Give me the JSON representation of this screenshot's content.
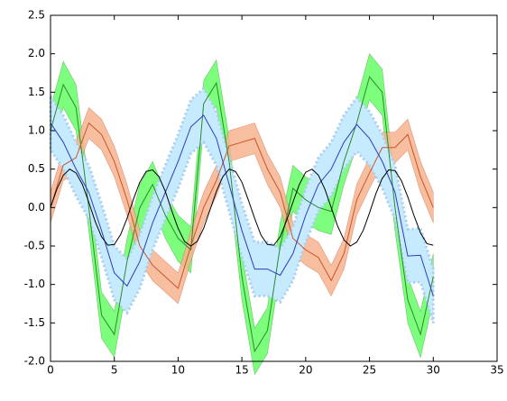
{
  "chart_data": {
    "type": "line",
    "x": [
      0,
      1,
      2,
      3,
      4,
      5,
      6,
      7,
      8,
      9,
      10,
      11,
      12,
      13,
      14,
      15,
      16,
      17,
      18,
      19,
      20,
      21,
      22,
      23,
      24,
      25,
      26,
      27,
      28,
      29,
      30
    ],
    "series": [
      {
        "color": "#2a8a2a",
        "fill": "#66ff66",
        "band": 0.3,
        "values": [
          1.0,
          1.6,
          1.3,
          0.0,
          -1.4,
          -1.65,
          -0.7,
          0.0,
          0.3,
          -0.1,
          -0.4,
          -0.55,
          1.35,
          1.62,
          0.6,
          -0.9,
          -1.87,
          -1.6,
          -0.5,
          0.25,
          0.1,
          0.0,
          -0.05,
          0.6,
          1.1,
          1.7,
          1.5,
          0.0,
          -1.2,
          -1.65,
          -0.9
        ]
      },
      {
        "color": "#c8552a",
        "fill": "#f7b38f",
        "band": 0.2,
        "values": [
          0.0,
          0.55,
          0.65,
          1.1,
          0.95,
          0.6,
          0.1,
          -0.5,
          -0.75,
          -0.9,
          -1.05,
          -0.5,
          0.0,
          0.35,
          0.8,
          0.85,
          0.9,
          0.5,
          0.2,
          -0.4,
          -0.55,
          -0.65,
          -0.95,
          -0.6,
          0.1,
          0.45,
          0.78,
          0.78,
          0.95,
          0.4,
          0.0
        ]
      },
      {
        "color": "#2b3bbf",
        "fill": "#c6ebff",
        "band": 0.35,
        "values": [
          1.1,
          0.85,
          0.5,
          0.2,
          -0.3,
          -0.85,
          -1.02,
          -0.7,
          -0.2,
          0.2,
          0.6,
          1.05,
          1.2,
          0.9,
          0.3,
          -0.3,
          -0.8,
          -0.8,
          -0.88,
          -0.6,
          -0.1,
          0.3,
          0.5,
          0.85,
          1.08,
          0.9,
          0.6,
          0.2,
          -0.63,
          -0.62,
          -1.15
        ]
      },
      {
        "color": "#000000",
        "x": [
          0,
          0.5,
          1,
          1.5,
          2,
          2.5,
          3,
          3.5,
          4,
          4.5,
          5,
          5.5,
          6,
          6.5,
          7,
          7.5,
          8,
          8.5,
          9,
          9.5,
          10,
          10.5,
          11,
          11.5,
          12,
          12.5,
          13,
          13.5,
          14,
          14.5,
          15,
          15.5,
          16,
          16.5,
          17,
          17.5,
          18,
          18.5,
          19,
          19.5,
          20,
          20.5,
          21,
          21.5,
          22,
          22.5,
          23,
          23.5,
          24,
          24.5,
          25,
          25.5,
          26,
          26.5,
          27,
          27.5,
          28,
          28.5,
          29,
          29.5,
          30
        ],
        "values": [
          0,
          0.24,
          0.42,
          0.5,
          0.45,
          0.3,
          0.07,
          -0.18,
          -0.38,
          -0.49,
          -0.48,
          -0.35,
          -0.14,
          0.11,
          0.33,
          0.47,
          0.49,
          0.4,
          0.21,
          -0.04,
          -0.27,
          -0.44,
          -0.5,
          -0.44,
          -0.27,
          -0.03,
          0.21,
          0.4,
          0.5,
          0.47,
          0.33,
          0.1,
          -0.14,
          -0.36,
          -0.48,
          -0.49,
          -0.38,
          -0.17,
          0.07,
          0.3,
          0.46,
          0.5,
          0.42,
          0.24,
          0,
          -0.24,
          -0.42,
          -0.5,
          -0.45,
          -0.3,
          -0.07,
          0.18,
          0.38,
          0.49,
          0.48,
          0.35,
          0.14,
          -0.11,
          -0.33,
          -0.47,
          -0.49
        ]
      }
    ],
    "xlim": [
      0,
      35
    ],
    "xticks": [
      0,
      5,
      10,
      15,
      20,
      25,
      30,
      35
    ],
    "ylim": [
      -2,
      2.5
    ],
    "yticks": [
      {
        "value": -2,
        "label": "-2.0"
      },
      {
        "value": -1.5,
        "label": "-1.5"
      },
      {
        "value": -1,
        "label": "-1.0"
      },
      {
        "value": -0.5,
        "label": "-0.5"
      },
      {
        "value": 0,
        "label": "0.0"
      },
      {
        "value": 0.5,
        "label": "0.5"
      },
      {
        "value": 1,
        "label": "1.0"
      },
      {
        "value": 1.5,
        "label": "1.5"
      },
      {
        "value": 2,
        "label": "2.0"
      },
      {
        "value": 2.5,
        "label": "2.5"
      }
    ]
  }
}
